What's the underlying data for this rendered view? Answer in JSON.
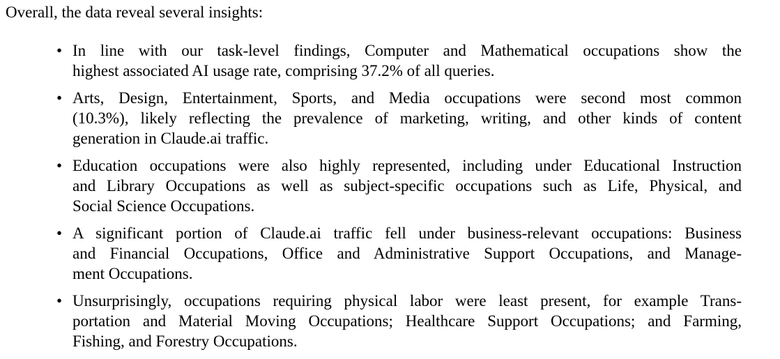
{
  "intro": "Overall, the data reveal several insights:",
  "bullet_symbol": "•",
  "bullets": [
    {
      "lines": [
        "In line with our task-level findings, Computer and Mathematical occupations show the",
        "highest associated AI usage rate, comprising 37.2% of all queries."
      ]
    },
    {
      "lines": [
        "Arts, Design, Entertainment, Sports, and Media occupations were second most common",
        "(10.3%), likely reflecting the prevalence of marketing, writing, and other kinds of content",
        "generation in Claude.ai traffic."
      ]
    },
    {
      "lines": [
        "Education occupations were also highly represented, including under Educational Instruction",
        "and Library Occupations as well as subject-specific occupations such as Life, Physical, and",
        "Social Science Occupations."
      ]
    },
    {
      "lines": [
        "A significant portion of Claude.ai traffic fell under business-relevant occupations: Business",
        "and Financial Occupations, Office and Administrative Support Occupations, and Manage-",
        "ment Occupations."
      ]
    },
    {
      "lines": [
        "Unsurprisingly, occupations requiring physical labor were least present, for example Trans-",
        "portation and Material Moving Occupations; Healthcare Support Occupations; and Farming,",
        "Fishing, and Forestry Occupations."
      ]
    }
  ]
}
